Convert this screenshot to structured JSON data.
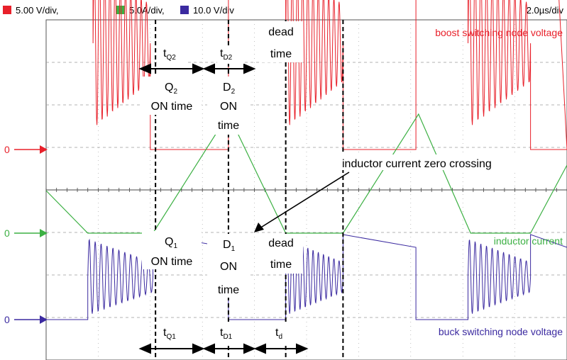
{
  "header": {
    "channels": [
      {
        "label": "5.00 V/div,",
        "color": "#e8202a"
      },
      {
        "label": "5.0A/div,",
        "color": "#3cb043"
      },
      {
        "label": "10.0 V/div",
        "color": "#3b2aa0"
      }
    ],
    "timebase": "2.0µs/div"
  },
  "colors": {
    "boost": "#e8202a",
    "inductor": "#3cb043",
    "buck": "#3b2aa0",
    "grid": "#9a9a9a",
    "frame": "#555555"
  },
  "ground_markers": [
    {
      "label": "0",
      "color": "#e8202a"
    },
    {
      "label": "0",
      "color": "#3cb043"
    },
    {
      "label": "0",
      "color": "#3b2aa0"
    }
  ],
  "trace_labels": {
    "boost": "boost switching node voltage",
    "inductor": "inductor current",
    "buck": "buck switching node voltage"
  },
  "annotations": {
    "zero_crossing": "inductor current zero crossing",
    "upper": {
      "tQ2": {
        "main": "t",
        "sub": "Q2"
      },
      "tD2": {
        "main": "t",
        "sub": "D2"
      },
      "dead": [
        "dead",
        "time"
      ],
      "q2_on": {
        "main": "Q",
        "sub": "2",
        "lines": [
          "ON time"
        ]
      },
      "d2_on": {
        "main": "D",
        "sub": "2",
        "lines": [
          "ON",
          "time"
        ]
      }
    },
    "lower": {
      "q1_on": {
        "main": "Q",
        "sub": "1",
        "lines": [
          "ON time"
        ]
      },
      "d1_on": {
        "main": "D",
        "sub": "1",
        "lines": [
          "ON",
          "time"
        ]
      },
      "dead": [
        "dead",
        "time"
      ],
      "tQ1": {
        "main": "t",
        "sub": "Q1"
      },
      "tD1": {
        "main": "t",
        "sub": "D1"
      },
      "td": {
        "main": "t",
        "sub": "d"
      }
    }
  },
  "chart_data": {
    "type": "line",
    "title": "",
    "xlabel": "",
    "ylabel": "",
    "x_unit": "us",
    "xlim": [
      0,
      20
    ],
    "x_divisions": 10,
    "y_divisions": 8,
    "grid": true,
    "events_us": {
      "Q2_on_start": 4.2,
      "Q2_on_end": 7.0,
      "D2_on_end": 9.2,
      "dead_end": 11.4
    },
    "series": [
      {
        "name": "boost switching node voltage",
        "scale": "5.00 V/div",
        "segments": [
          {
            "x0": 0.0,
            "x1": 1.8,
            "level_div": 4.6,
            "level_end_div": 4.3
          },
          {
            "x0": 1.8,
            "x1": 4.0,
            "ringing": true,
            "center_div": 2.5,
            "amp_start_div": 2.0,
            "amp_end_div": 0.9
          },
          {
            "x0": 4.0,
            "x1": 7.0,
            "level_div": 0.0
          },
          {
            "x0": 7.0,
            "x1": 9.2,
            "level_div": 4.6,
            "level_end_div": 4.3
          },
          {
            "x0": 9.2,
            "x1": 11.4,
            "ringing": true,
            "center_div": 2.5,
            "amp_start_div": 2.0,
            "amp_end_div": 0.9
          },
          {
            "x0": 11.4,
            "x1": 14.2,
            "level_div": 0.0
          },
          {
            "x0": 14.2,
            "x1": 16.2,
            "level_div": 4.6,
            "level_end_div": 4.3
          },
          {
            "x0": 16.2,
            "x1": 18.6,
            "ringing": true,
            "center_div": 2.5,
            "amp_start_div": 2.0,
            "amp_end_div": 0.9
          },
          {
            "x0": 18.6,
            "x1": 20.0,
            "level_div": 0.0
          },
          {
            "x0": 19.6,
            "x1": 20.0,
            "level_div": 4.6
          }
        ]
      },
      {
        "name": "inductor current",
        "scale": "5.0A/div",
        "points": [
          [
            0.0,
            1.0
          ],
          [
            1.6,
            0.0
          ],
          [
            4.1,
            0.0
          ],
          [
            7.0,
            2.8
          ],
          [
            9.2,
            0.0
          ],
          [
            11.4,
            0.0
          ],
          [
            14.3,
            2.8
          ],
          [
            16.3,
            0.0
          ],
          [
            18.6,
            0.0
          ],
          [
            20.0,
            1.6
          ]
        ]
      },
      {
        "name": "buck switching node voltage",
        "scale": "10.0 V/div",
        "segments": [
          {
            "x0": 0.0,
            "x1": 1.6,
            "level_div": 0.0
          },
          {
            "x0": 1.6,
            "x1": 4.1,
            "ringing": true,
            "center_div": 1.0,
            "amp_start_div": 0.9,
            "amp_end_div": 0.35
          },
          {
            "x0": 4.1,
            "x1": 7.0,
            "level_div": 2.0,
            "level_end_div": 1.7
          },
          {
            "x0": 7.0,
            "x1": 9.2,
            "level_div": 0.0
          },
          {
            "x0": 9.2,
            "x1": 11.4,
            "ringing": true,
            "center_div": 1.0,
            "amp_start_div": 0.9,
            "amp_end_div": 0.35
          },
          {
            "x0": 11.4,
            "x1": 14.2,
            "level_div": 2.0,
            "level_end_div": 1.7
          },
          {
            "x0": 14.2,
            "x1": 16.2,
            "level_div": 0.0
          },
          {
            "x0": 16.2,
            "x1": 18.6,
            "ringing": true,
            "center_div": 1.0,
            "amp_start_div": 0.9,
            "amp_end_div": 0.35
          },
          {
            "x0": 18.6,
            "x1": 20.0,
            "level_div": 2.0,
            "level_end_div": 1.7
          }
        ]
      }
    ]
  }
}
